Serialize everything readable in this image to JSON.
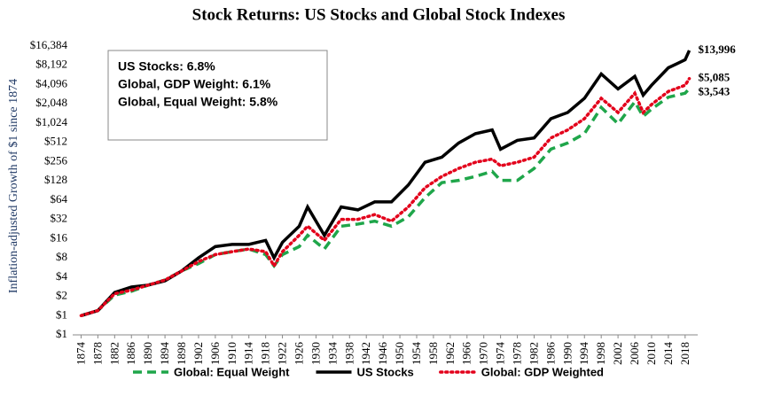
{
  "chart_data": {
    "type": "line",
    "title": "Stock Returns: US Stocks and Global Stock Indexes",
    "y_label": "Inflation-adjusted Growth of $1 since 1874",
    "log_scale": true,
    "x": [
      1874,
      1878,
      1882,
      1886,
      1890,
      1894,
      1898,
      1902,
      1906,
      1910,
      1914,
      1918,
      1920,
      1922,
      1926,
      1928,
      1932,
      1936,
      1940,
      1944,
      1948,
      1952,
      1956,
      1960,
      1964,
      1968,
      1972,
      1974,
      1978,
      1982,
      1986,
      1990,
      1994,
      1998,
      2002,
      2006,
      2008,
      2010,
      2014,
      2018,
      2019
    ],
    "series": [
      {
        "name": "Global: Equal Weight",
        "color": "#1fa64a",
        "dash": "dashed",
        "end_label": "$3,543",
        "values": [
          1,
          1.2,
          2.1,
          2.4,
          3,
          3.6,
          5,
          6.5,
          9,
          10,
          11,
          9,
          6,
          9,
          12,
          18,
          11,
          25,
          27,
          30,
          25,
          35,
          70,
          120,
          130,
          150,
          180,
          130,
          130,
          200,
          400,
          500,
          700,
          1800,
          1000,
          2200,
          1300,
          1700,
          2600,
          3000,
          3543
        ]
      },
      {
        "name": "US Stocks",
        "color": "#000000",
        "dash": "solid",
        "end_label": "$13,996",
        "values": [
          1,
          1.2,
          2.3,
          2.8,
          3,
          3.5,
          5,
          8,
          12,
          13,
          13,
          15,
          8,
          14,
          25,
          50,
          18,
          50,
          45,
          60,
          60,
          110,
          250,
          300,
          500,
          700,
          800,
          400,
          550,
          600,
          1200,
          1500,
          2500,
          6000,
          3500,
          5500,
          2800,
          4000,
          7500,
          10000,
          13996
        ]
      },
      {
        "name": "Global: GDP Weighted",
        "color": "#e3001b",
        "dash": "dotted",
        "end_label": "$5,085",
        "values": [
          1,
          1.2,
          2.2,
          2.5,
          3,
          3.6,
          5,
          7,
          9,
          10,
          11,
          10,
          6,
          10,
          18,
          25,
          15,
          32,
          32,
          38,
          30,
          50,
          100,
          150,
          200,
          250,
          280,
          220,
          250,
          300,
          600,
          800,
          1200,
          2500,
          1500,
          3000,
          1500,
          2000,
          3200,
          4000,
          5085
        ]
      }
    ],
    "annotations": [
      {
        "text": "US Stocks: 6.8%",
        "color": "#000000"
      },
      {
        "text": "Global, GDP Weight: 6.1%",
        "color": "#e3001b"
      },
      {
        "text": "Global, Equal Weight: 5.8%",
        "color": "#1fa64a"
      }
    ],
    "xlim": [
      1872,
      2021
    ],
    "xticks": [
      1874,
      1878,
      1882,
      1886,
      1890,
      1894,
      1898,
      1902,
      1906,
      1910,
      1914,
      1918,
      1922,
      1926,
      1930,
      1934,
      1938,
      1942,
      1946,
      1950,
      1954,
      1958,
      1962,
      1966,
      1970,
      1974,
      1978,
      1982,
      1986,
      1990,
      1994,
      1998,
      2002,
      2006,
      2010,
      2014,
      2018
    ],
    "ylim": [
      0.5,
      16384
    ],
    "yticks": [
      {
        "value": 0.5,
        "label": "$1"
      },
      {
        "value": 1,
        "label": "$1"
      },
      {
        "value": 2,
        "label": "$2"
      },
      {
        "value": 4,
        "label": "$4"
      },
      {
        "value": 8,
        "label": "$8"
      },
      {
        "value": 16,
        "label": "$16"
      },
      {
        "value": 32,
        "label": "$32"
      },
      {
        "value": 64,
        "label": "$64"
      },
      {
        "value": 128,
        "label": "$128"
      },
      {
        "value": 256,
        "label": "$256"
      },
      {
        "value": 512,
        "label": "$512"
      },
      {
        "value": 1024,
        "label": "$1,024"
      },
      {
        "value": 2048,
        "label": "$2,048"
      },
      {
        "value": 4096,
        "label": "$4,096"
      },
      {
        "value": 8192,
        "label": "$8,192"
      },
      {
        "value": 16384,
        "label": "$16,384"
      }
    ]
  }
}
